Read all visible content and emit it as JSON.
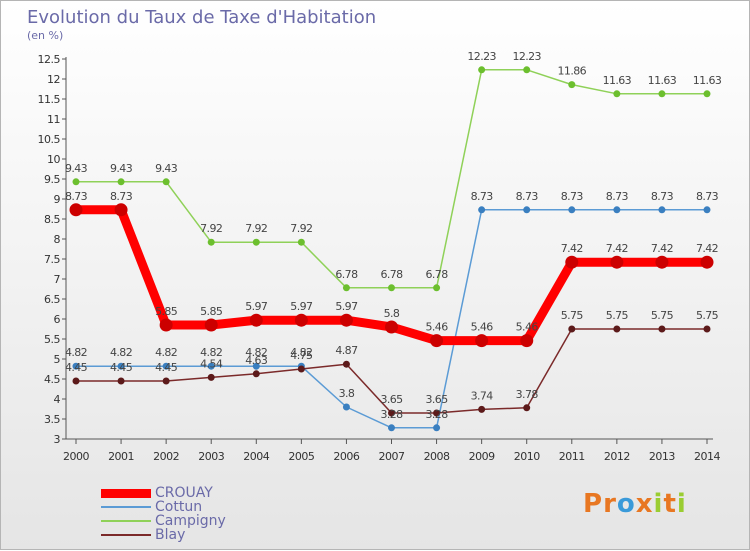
{
  "header": {
    "title": "Evolution du Taux de Taxe d'Habitation",
    "subtitle": "(en %)"
  },
  "brand": {
    "name": "Proxiti",
    "letters": [
      {
        "char": "P",
        "color": "#e87722"
      },
      {
        "char": "r",
        "color": "#e87722"
      },
      {
        "char": "o",
        "color": "#3a9ad9"
      },
      {
        "char": "x",
        "color": "#e87722"
      },
      {
        "char": "i",
        "color": "#9acd32"
      },
      {
        "char": "t",
        "color": "#e87722"
      },
      {
        "char": "i",
        "color": "#9acd32"
      }
    ]
  },
  "chart_data": {
    "type": "line",
    "title": "Evolution du Taux de Taxe d'Habitation",
    "ylabel": "(en %)",
    "xlabel": "",
    "x": [
      "2000",
      "2001",
      "2002",
      "2003",
      "2004",
      "2005",
      "2006",
      "2007",
      "2008",
      "2009",
      "2010",
      "2011",
      "2012",
      "2013",
      "2014"
    ],
    "ylim": [
      3,
      12.5
    ],
    "yticks": [
      "3",
      "3.5",
      "4",
      "4.5",
      "5",
      "5.5",
      "6",
      "6.5",
      "7",
      "7.5",
      "8",
      "8.5",
      "9",
      "9.5",
      "10",
      "10.5",
      "11",
      "11.5",
      "12",
      "12.5"
    ],
    "grid": false,
    "legend_position": "bottom-left",
    "series": [
      {
        "name": "CROUAY",
        "color": "#ff0000",
        "marker_color": "#cc0000",
        "width": 9,
        "marker_r": 6.5,
        "values": [
          8.73,
          8.73,
          5.85,
          5.85,
          5.97,
          5.97,
          5.97,
          5.8,
          5.46,
          5.46,
          5.46,
          7.42,
          7.42,
          7.42,
          7.42
        ],
        "labels": [
          "8.73",
          "8.73",
          "5.85",
          "5.85",
          "5.97",
          "5.97",
          "5.97",
          "5.8",
          "5.46",
          "5.46",
          "5.46",
          "7.42",
          "7.42",
          "7.42",
          "7.42"
        ]
      },
      {
        "name": "Cottun",
        "color": "#5b9bd5",
        "marker_color": "#3a7fc0",
        "width": 1.5,
        "marker_r": 3.5,
        "values": [
          4.82,
          4.82,
          4.82,
          4.82,
          4.82,
          4.82,
          3.8,
          3.28,
          3.28,
          8.73,
          8.73,
          8.73,
          8.73,
          8.73,
          8.73
        ],
        "labels": [
          "4.82",
          "4.82",
          "4.82",
          "4.82",
          "4.82",
          "4.82",
          "3.8",
          "3.28",
          "3.28",
          "8.73",
          "8.73",
          "8.73",
          "8.73",
          "8.73",
          "8.73"
        ]
      },
      {
        "name": "Campigny",
        "color": "#8fd158",
        "marker_color": "#6cbf2e",
        "width": 1.5,
        "marker_r": 3.5,
        "values": [
          9.43,
          9.43,
          9.43,
          7.92,
          7.92,
          7.92,
          6.78,
          6.78,
          6.78,
          12.23,
          12.23,
          11.86,
          11.63,
          11.63,
          11.63
        ],
        "labels": [
          "9.43",
          "9.43",
          "9.43",
          "7.92",
          "7.92",
          "7.92",
          "6.78",
          "6.78",
          "6.78",
          "12.23",
          "12.23",
          "11.86",
          "11.63",
          "11.63",
          "11.63"
        ]
      },
      {
        "name": "Blay",
        "color": "#7b2a2a",
        "marker_color": "#5c1a1a",
        "width": 1.5,
        "marker_r": 3.5,
        "values": [
          4.45,
          4.45,
          4.45,
          4.54,
          4.63,
          4.75,
          4.87,
          3.65,
          3.65,
          3.74,
          3.78,
          5.75,
          5.75,
          5.75,
          5.75
        ],
        "labels": [
          "4.45",
          "4.45",
          "4.45",
          "4.54",
          "4.63",
          "4.75",
          "4.87",
          "3.65",
          "3.65",
          "3.74",
          "3.78",
          "5.75",
          "5.75",
          "5.75",
          "5.75"
        ]
      }
    ]
  }
}
